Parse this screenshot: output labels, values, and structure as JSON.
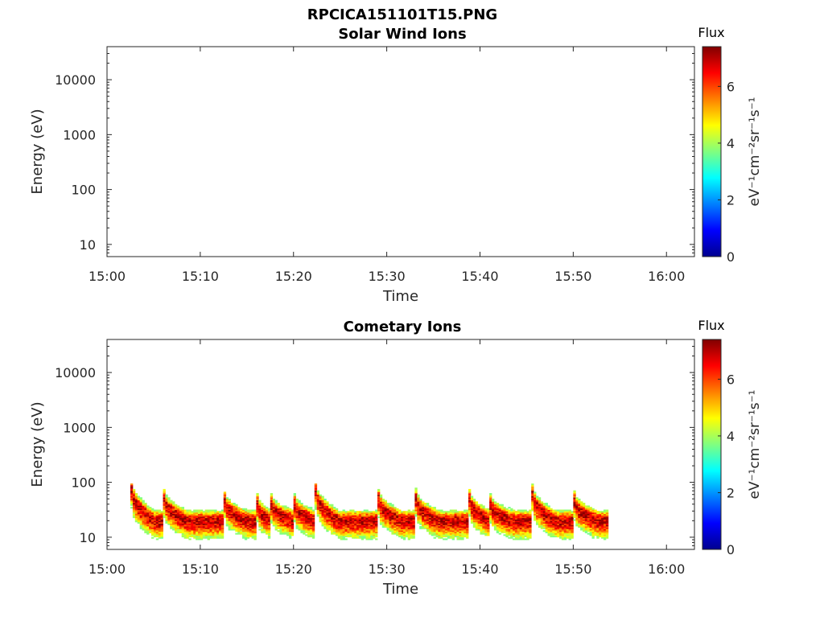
{
  "figure_title": "RPCICA151101T15.PNG",
  "chart_data": [
    {
      "type": "heatmap",
      "title": "Solar Wind Ions",
      "xlabel": "Time",
      "ylabel": "Energy (eV)",
      "x_ticks": [
        "15:00",
        "15:10",
        "15:20",
        "15:30",
        "15:40",
        "15:50",
        "16:00"
      ],
      "x_range": [
        "15:00",
        "16:03"
      ],
      "y_scale": "log",
      "y_ticks": [
        10,
        100,
        1000,
        10000
      ],
      "y_tick_labels": [
        "10",
        "100",
        "1000",
        "10000"
      ],
      "y_range": [
        6,
        40000
      ],
      "colorbar": {
        "title": "Flux",
        "label": "eV⁻¹cm⁻²sr⁻¹s⁻¹",
        "range": [
          0,
          7.4
        ],
        "ticks": [
          0,
          2,
          4,
          6
        ],
        "tick_labels": [
          "0",
          "2",
          "4",
          "6"
        ],
        "colormap": "jet"
      },
      "bursts": []
    },
    {
      "type": "heatmap",
      "title": "Cometary Ions",
      "xlabel": "Time",
      "ylabel": "Energy (eV)",
      "x_ticks": [
        "15:00",
        "15:10",
        "15:20",
        "15:30",
        "15:40",
        "15:50",
        "16:00"
      ],
      "x_range": [
        "15:00",
        "16:03"
      ],
      "y_scale": "log",
      "y_ticks": [
        10,
        100,
        1000,
        10000
      ],
      "y_tick_labels": [
        "10",
        "100",
        "1000",
        "10000"
      ],
      "y_range": [
        6,
        40000
      ],
      "colorbar": {
        "title": "Flux",
        "label": "eV⁻¹cm⁻²sr⁻¹s⁻¹",
        "range": [
          0,
          7.4
        ],
        "ticks": [
          0,
          2,
          4,
          6
        ],
        "tick_labels": [
          "0",
          "2",
          "4",
          "6"
        ],
        "colormap": "jet"
      },
      "data_coverage": [
        "15:02:30",
        "15:53:45"
      ],
      "typical_peak_energy_eV": 20,
      "peak_flux": 7,
      "bursts": [
        {
          "start": "15:02:30",
          "end": "15:06:00",
          "peak_energy_eV": 75
        },
        {
          "start": "15:06:00",
          "end": "15:12:30",
          "peak_energy_eV": 50
        },
        {
          "start": "15:12:30",
          "end": "15:16:00",
          "peak_energy_eV": 45
        },
        {
          "start": "15:16:00",
          "end": "15:17:30",
          "peak_energy_eV": 40
        },
        {
          "start": "15:17:30",
          "end": "15:20:00",
          "peak_energy_eV": 40
        },
        {
          "start": "15:20:00",
          "end": "15:22:15",
          "peak_energy_eV": 40
        },
        {
          "start": "15:22:15",
          "end": "15:29:00",
          "peak_energy_eV": 70
        },
        {
          "start": "15:29:00",
          "end": "15:33:00",
          "peak_energy_eV": 50
        },
        {
          "start": "15:33:00",
          "end": "15:38:45",
          "peak_energy_eV": 50
        },
        {
          "start": "15:38:45",
          "end": "15:41:00",
          "peak_energy_eV": 50
        },
        {
          "start": "15:41:00",
          "end": "15:45:30",
          "peak_energy_eV": 40
        },
        {
          "start": "15:45:30",
          "end": "15:50:00",
          "peak_energy_eV": 60
        },
        {
          "start": "15:50:00",
          "end": "15:53:45",
          "peak_energy_eV": 45
        }
      ]
    }
  ]
}
